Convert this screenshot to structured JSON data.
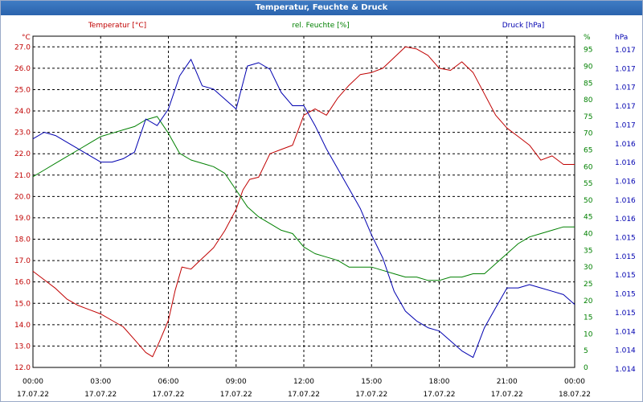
{
  "window": {
    "title": "Temperatur, Feuchte & Druck"
  },
  "colors": {
    "temperature": "#c00000",
    "humidity": "#008000",
    "pressure": "#0000b0",
    "grid": "#000000"
  },
  "chart_data": {
    "type": "line",
    "title": "Temperatur, Feuchte & Druck",
    "grid": true,
    "x_ticks": [
      {
        "time": "00:00",
        "date": "17.07.22"
      },
      {
        "time": "03:00",
        "date": "17.07.22"
      },
      {
        "time": "06:00",
        "date": "17.07.22"
      },
      {
        "time": "09:00",
        "date": "17.07.22"
      },
      {
        "time": "12:00",
        "date": "17.07.22"
      },
      {
        "time": "15:00",
        "date": "17.07.22"
      },
      {
        "time": "18:00",
        "date": "17.07.22"
      },
      {
        "time": "21:00",
        "date": "17.07.22"
      },
      {
        "time": "00:00",
        "date": "18.07.22"
      }
    ],
    "x_range_hours": [
      0,
      24
    ],
    "axes": {
      "left": {
        "unit": "°C",
        "label": "Temperatur [°C]",
        "range": [
          12.0,
          27.5
        ],
        "ticks": [
          "12.0",
          "13.0",
          "14.0",
          "15.0",
          "16.0",
          "17.0",
          "18.0",
          "19.0",
          "20.0",
          "21.0",
          "22.0",
          "23.0",
          "24.0",
          "25.0",
          "26.0",
          "27.0"
        ]
      },
      "middle": {
        "unit": "%",
        "label": "rel. Feuchte [%]",
        "range": [
          0,
          99
        ],
        "ticks": [
          "0",
          "5",
          "10",
          "15",
          "20",
          "25",
          "30",
          "35",
          "40",
          "45",
          "50",
          "55",
          "60",
          "65",
          "70",
          "75",
          "80",
          "85",
          "90",
          "95"
        ]
      },
      "right": {
        "unit": "hPa",
        "label": "Druck [hPa]",
        "range": [
          0,
          1
        ],
        "ticks": [
          "1.014",
          "1.014",
          "1.014",
          "1.015",
          "1.015",
          "1.015",
          "1.015",
          "1.015",
          "1.016",
          "1.016",
          "1.016",
          "1.016",
          "1.016",
          "1.017",
          "1.017",
          "1.017",
          "1.017",
          "1.017"
        ]
      }
    },
    "series": [
      {
        "name": "Temperatur [°C]",
        "axis": "left",
        "color": "#c00000",
        "x": [
          0,
          0.5,
          1,
          1.5,
          2,
          2.5,
          3,
          3.5,
          4,
          4.5,
          5,
          5.3,
          5.6,
          6,
          6.3,
          6.6,
          7,
          7.5,
          8,
          8.5,
          9,
          9.3,
          9.6,
          10,
          10.5,
          11,
          11.5,
          12,
          12.5,
          13,
          13.5,
          14,
          14.5,
          15,
          15.5,
          16,
          16.5,
          17,
          17.5,
          18,
          18.5,
          19,
          19.5,
          20,
          20.5,
          21,
          21.5,
          22,
          22.5,
          23,
          23.5,
          24
        ],
        "values": [
          16.5,
          16.1,
          15.7,
          15.2,
          14.9,
          14.7,
          14.5,
          14.2,
          13.9,
          13.3,
          12.7,
          12.5,
          13.2,
          14.2,
          15.6,
          16.7,
          16.6,
          17.1,
          17.6,
          18.4,
          19.4,
          20.3,
          20.8,
          20.9,
          22.0,
          22.2,
          22.4,
          23.8,
          24.1,
          23.8,
          24.6,
          25.2,
          25.7,
          25.8,
          26.0,
          26.5,
          27.0,
          26.9,
          26.6,
          26.0,
          25.9,
          26.3,
          25.8,
          24.8,
          23.8,
          23.2,
          22.8,
          22.4,
          21.7,
          21.9,
          21.5,
          21.5
        ]
      },
      {
        "name": "rel. Feuchte [%]",
        "axis": "middle",
        "color": "#008000",
        "x": [
          0,
          0.5,
          1,
          1.5,
          2,
          2.5,
          3,
          3.5,
          4,
          4.5,
          5,
          5.5,
          6,
          6.5,
          7,
          7.5,
          8,
          8.5,
          9,
          9.5,
          10,
          10.5,
          11,
          11.5,
          12,
          12.5,
          13,
          13.5,
          14,
          14.5,
          15,
          15.5,
          16,
          16.5,
          17,
          17.5,
          18,
          18.5,
          19,
          19.5,
          20,
          20.5,
          21,
          21.5,
          22,
          22.5,
          23,
          23.5,
          24
        ],
        "values": [
          57,
          59,
          61,
          63,
          65,
          67,
          69,
          70,
          71,
          72,
          74,
          75,
          70,
          64,
          62,
          61,
          60,
          58,
          53,
          48,
          45,
          43,
          41,
          40,
          36,
          34,
          33,
          32,
          30,
          30,
          30,
          29,
          28,
          27,
          27,
          26,
          26,
          27,
          27,
          28,
          28,
          31,
          34,
          37,
          39,
          40,
          41,
          42,
          42
        ]
      },
      {
        "name": "Druck [hPa]",
        "axis": "right",
        "color": "#0000b0",
        "x": [
          0,
          0.5,
          1,
          1.5,
          2,
          2.5,
          3,
          3.5,
          4,
          4.5,
          5,
          5.5,
          6,
          6.5,
          7,
          7.5,
          8,
          8.5,
          9,
          9.5,
          10,
          10.5,
          11,
          11.5,
          12,
          12.5,
          13,
          13.5,
          14,
          14.5,
          15,
          15.5,
          16,
          16.5,
          17,
          17.5,
          18,
          18.5,
          19,
          19.5,
          20,
          20.5,
          21,
          21.5,
          22,
          22.5,
          23,
          23.5,
          24
        ],
        "values": [
          0.69,
          0.71,
          0.7,
          0.68,
          0.66,
          0.64,
          0.62,
          0.62,
          0.63,
          0.65,
          0.75,
          0.73,
          0.78,
          0.88,
          0.93,
          0.85,
          0.84,
          0.81,
          0.78,
          0.91,
          0.92,
          0.9,
          0.83,
          0.79,
          0.79,
          0.73,
          0.66,
          0.6,
          0.54,
          0.48,
          0.4,
          0.33,
          0.23,
          0.17,
          0.14,
          0.12,
          0.11,
          0.08,
          0.05,
          0.03,
          0.12,
          0.18,
          0.24,
          0.24,
          0.25,
          0.24,
          0.23,
          0.22,
          0.19
        ]
      }
    ]
  }
}
